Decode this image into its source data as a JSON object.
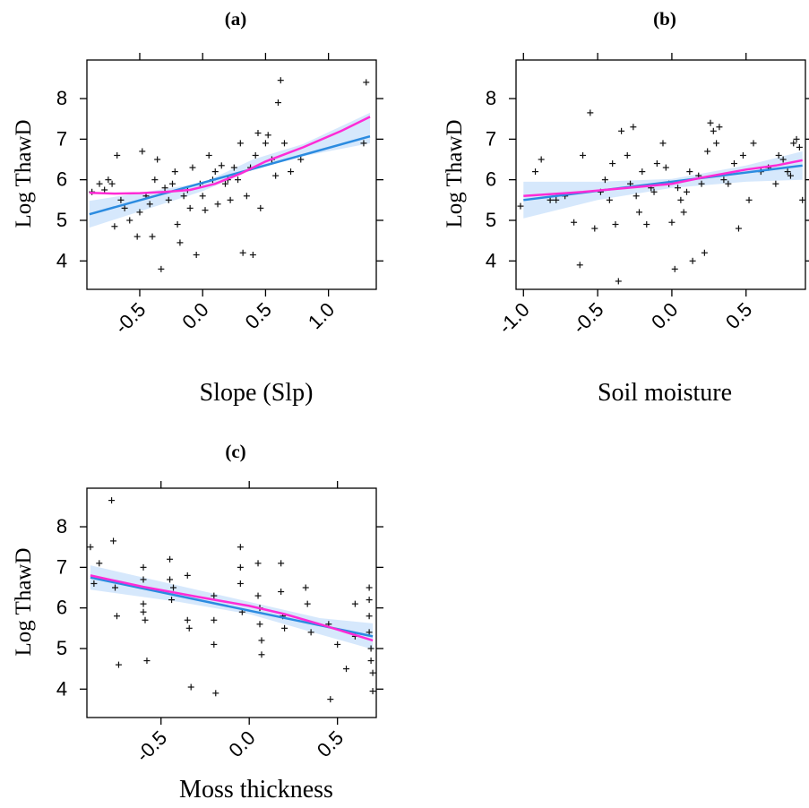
{
  "chart_data": [
    {
      "type": "scatter",
      "panel_label": "(a)",
      "xlabel": "Slope (Slp)",
      "ylabel": "Log ThawD",
      "xlim": [
        -0.92,
        1.38
      ],
      "ylim": [
        3.3,
        8.95
      ],
      "xticks": [
        -0.5,
        0.0,
        0.5,
        1.0
      ],
      "xtick_labels": [
        "-0.5",
        "0.0",
        "0.5",
        "1.0"
      ],
      "yticks": [
        4,
        5,
        6,
        7,
        8
      ],
      "ytick_labels": [
        "4",
        "5",
        "6",
        "7",
        "8"
      ],
      "grid": false,
      "points": [
        [
          -0.88,
          5.7
        ],
        [
          -0.82,
          5.9
        ],
        [
          -0.78,
          5.75
        ],
        [
          -0.75,
          6.0
        ],
        [
          -0.72,
          5.9
        ],
        [
          -0.7,
          4.85
        ],
        [
          -0.68,
          6.6
        ],
        [
          -0.65,
          5.5
        ],
        [
          -0.62,
          5.3
        ],
        [
          -0.58,
          5.0
        ],
        [
          -0.52,
          4.6
        ],
        [
          -0.5,
          5.2
        ],
        [
          -0.48,
          6.7
        ],
        [
          -0.45,
          5.6
        ],
        [
          -0.42,
          5.4
        ],
        [
          -0.4,
          4.6
        ],
        [
          -0.38,
          6.0
        ],
        [
          -0.36,
          6.5
        ],
        [
          -0.33,
          3.8
        ],
        [
          -0.3,
          5.8
        ],
        [
          -0.27,
          5.5
        ],
        [
          -0.24,
          5.9
        ],
        [
          -0.22,
          6.2
        ],
        [
          -0.2,
          4.9
        ],
        [
          -0.18,
          4.45
        ],
        [
          -0.15,
          5.6
        ],
        [
          -0.12,
          5.75
        ],
        [
          -0.1,
          5.3
        ],
        [
          -0.08,
          6.3
        ],
        [
          -0.05,
          4.15
        ],
        [
          -0.02,
          5.9
        ],
        [
          0.0,
          5.6
        ],
        [
          0.02,
          5.25
        ],
        [
          0.05,
          6.6
        ],
        [
          0.08,
          6.0
        ],
        [
          0.1,
          6.2
        ],
        [
          0.12,
          5.4
        ],
        [
          0.15,
          6.35
        ],
        [
          0.18,
          5.9
        ],
        [
          0.2,
          6.0
        ],
        [
          0.22,
          5.5
        ],
        [
          0.25,
          6.3
        ],
        [
          0.28,
          6.0
        ],
        [
          0.3,
          6.9
        ],
        [
          0.32,
          4.2
        ],
        [
          0.35,
          5.6
        ],
        [
          0.38,
          6.3
        ],
        [
          0.4,
          4.15
        ],
        [
          0.42,
          6.6
        ],
        [
          0.44,
          7.15
        ],
        [
          0.46,
          5.3
        ],
        [
          0.5,
          6.9
        ],
        [
          0.52,
          7.1
        ],
        [
          0.55,
          6.5
        ],
        [
          0.58,
          6.1
        ],
        [
          0.6,
          7.9
        ],
        [
          0.62,
          8.45
        ],
        [
          0.65,
          6.9
        ],
        [
          0.7,
          6.2
        ],
        [
          0.78,
          6.5
        ],
        [
          1.28,
          6.9
        ],
        [
          1.3,
          8.4
        ]
      ],
      "fit_line": [
        [
          -0.9,
          5.15
        ],
        [
          1.33,
          7.07
        ]
      ],
      "ci_band": {
        "x": [
          -0.9,
          0.0,
          0.4,
          0.8,
          1.33
        ],
        "lower": [
          4.82,
          5.72,
          6.25,
          6.58,
          6.9
        ],
        "upper": [
          5.48,
          5.92,
          6.5,
          6.88,
          7.65
        ]
      },
      "smooth_line": [
        [
          -0.9,
          5.68
        ],
        [
          -0.7,
          5.66
        ],
        [
          -0.5,
          5.67
        ],
        [
          -0.3,
          5.7
        ],
        [
          -0.1,
          5.75
        ],
        [
          0.1,
          5.9
        ],
        [
          0.3,
          6.15
        ],
        [
          0.5,
          6.45
        ],
        [
          0.8,
          6.8
        ],
        [
          1.1,
          7.2
        ],
        [
          1.33,
          7.55
        ]
      ]
    },
    {
      "type": "scatter",
      "panel_label": "(b)",
      "xlabel": "Soil moisture",
      "ylabel": "Log ThawD",
      "xlim": [
        -1.05,
        0.9
      ],
      "ylim": [
        3.3,
        8.95
      ],
      "xticks": [
        -1.0,
        -0.5,
        0.0,
        0.5
      ],
      "xtick_labels": [
        "-1.0",
        "-0.5",
        "0.0",
        "0.5"
      ],
      "yticks": [
        4,
        5,
        6,
        7,
        8
      ],
      "ytick_labels": [
        "4",
        "5",
        "6",
        "7",
        "8"
      ],
      "grid": false,
      "points": [
        [
          -1.02,
          5.35
        ],
        [
          -0.92,
          6.2
        ],
        [
          -0.88,
          6.5
        ],
        [
          -0.82,
          5.5
        ],
        [
          -0.78,
          5.5
        ],
        [
          -0.72,
          5.6
        ],
        [
          -0.66,
          4.95
        ],
        [
          -0.62,
          3.9
        ],
        [
          -0.6,
          6.6
        ],
        [
          -0.55,
          7.65
        ],
        [
          -0.52,
          4.8
        ],
        [
          -0.48,
          5.7
        ],
        [
          -0.45,
          6.0
        ],
        [
          -0.42,
          5.5
        ],
        [
          -0.4,
          6.4
        ],
        [
          -0.38,
          4.9
        ],
        [
          -0.36,
          3.5
        ],
        [
          -0.34,
          7.2
        ],
        [
          -0.3,
          6.6
        ],
        [
          -0.28,
          5.9
        ],
        [
          -0.26,
          7.3
        ],
        [
          -0.24,
          5.6
        ],
        [
          -0.22,
          5.2
        ],
        [
          -0.2,
          6.2
        ],
        [
          -0.17,
          4.9
        ],
        [
          -0.14,
          5.8
        ],
        [
          -0.12,
          5.7
        ],
        [
          -0.1,
          6.4
        ],
        [
          -0.06,
          6.9
        ],
        [
          -0.04,
          6.3
        ],
        [
          -0.02,
          5.9
        ],
        [
          0.0,
          4.95
        ],
        [
          0.02,
          3.8
        ],
        [
          0.04,
          5.8
        ],
        [
          0.06,
          5.5
        ],
        [
          0.08,
          5.2
        ],
        [
          0.1,
          5.7
        ],
        [
          0.12,
          6.2
        ],
        [
          0.14,
          4.0
        ],
        [
          0.18,
          6.1
        ],
        [
          0.2,
          5.9
        ],
        [
          0.22,
          4.2
        ],
        [
          0.24,
          6.7
        ],
        [
          0.26,
          7.4
        ],
        [
          0.28,
          7.2
        ],
        [
          0.3,
          6.9
        ],
        [
          0.32,
          7.3
        ],
        [
          0.35,
          6.0
        ],
        [
          0.38,
          5.9
        ],
        [
          0.42,
          6.4
        ],
        [
          0.45,
          4.8
        ],
        [
          0.48,
          6.6
        ],
        [
          0.52,
          5.5
        ],
        [
          0.55,
          6.9
        ],
        [
          0.6,
          6.2
        ],
        [
          0.65,
          6.3
        ],
        [
          0.7,
          5.9
        ],
        [
          0.72,
          6.6
        ],
        [
          0.75,
          6.5
        ],
        [
          0.78,
          6.2
        ],
        [
          0.8,
          6.1
        ],
        [
          0.82,
          6.9
        ],
        [
          0.84,
          7.0
        ],
        [
          0.86,
          6.8
        ],
        [
          0.88,
          5.5
        ]
      ],
      "fit_line": [
        [
          -1.0,
          5.5
        ],
        [
          0.88,
          6.35
        ]
      ],
      "ci_band": {
        "x": [
          -1.0,
          -0.5,
          0.0,
          0.5,
          0.88
        ],
        "lower": [
          5.05,
          5.5,
          5.8,
          5.95,
          6.0
        ],
        "upper": [
          5.95,
          5.95,
          6.02,
          6.35,
          6.7
        ]
      },
      "smooth_line": [
        [
          -1.0,
          5.6
        ],
        [
          -0.6,
          5.7
        ],
        [
          -0.3,
          5.8
        ],
        [
          0.0,
          5.9
        ],
        [
          0.2,
          6.05
        ],
        [
          0.5,
          6.25
        ],
        [
          0.7,
          6.35
        ],
        [
          0.88,
          6.48
        ]
      ]
    },
    {
      "type": "scatter",
      "panel_label": "(c)",
      "xlabel": "Moss thickness",
      "ylabel": "Log ThawD",
      "xlim": [
        -0.92,
        0.72
      ],
      "ylim": [
        3.3,
        8.95
      ],
      "xticks": [
        -0.5,
        0.0,
        0.5
      ],
      "xtick_labels": [
        "-0.5",
        "0.0",
        "0.5"
      ],
      "yticks": [
        4,
        5,
        6,
        7,
        8
      ],
      "ytick_labels": [
        "4",
        "5",
        "6",
        "7",
        "8"
      ],
      "grid": false,
      "points": [
        [
          -0.9,
          7.5
        ],
        [
          -0.88,
          6.6
        ],
        [
          -0.85,
          7.1
        ],
        [
          -0.78,
          8.65
        ],
        [
          -0.77,
          7.65
        ],
        [
          -0.76,
          6.5
        ],
        [
          -0.75,
          5.8
        ],
        [
          -0.74,
          4.6
        ],
        [
          -0.6,
          7.0
        ],
        [
          -0.6,
          6.7
        ],
        [
          -0.6,
          6.1
        ],
        [
          -0.6,
          5.9
        ],
        [
          -0.59,
          5.7
        ],
        [
          -0.58,
          4.7
        ],
        [
          -0.45,
          7.2
        ],
        [
          -0.45,
          6.7
        ],
        [
          -0.44,
          6.2
        ],
        [
          -0.43,
          6.5
        ],
        [
          -0.35,
          6.8
        ],
        [
          -0.35,
          5.7
        ],
        [
          -0.34,
          5.5
        ],
        [
          -0.33,
          4.05
        ],
        [
          -0.2,
          6.3
        ],
        [
          -0.2,
          5.7
        ],
        [
          -0.2,
          5.1
        ],
        [
          -0.19,
          3.9
        ],
        [
          -0.05,
          7.5
        ],
        [
          -0.05,
          7.0
        ],
        [
          -0.05,
          6.6
        ],
        [
          -0.04,
          5.9
        ],
        [
          0.05,
          7.1
        ],
        [
          0.05,
          6.3
        ],
        [
          0.06,
          6.0
        ],
        [
          0.06,
          5.6
        ],
        [
          0.07,
          5.2
        ],
        [
          0.07,
          4.85
        ],
        [
          0.18,
          7.1
        ],
        [
          0.18,
          6.4
        ],
        [
          0.19,
          5.8
        ],
        [
          0.2,
          5.5
        ],
        [
          0.32,
          6.5
        ],
        [
          0.33,
          6.1
        ],
        [
          0.35,
          5.4
        ],
        [
          0.45,
          5.6
        ],
        [
          0.46,
          3.75
        ],
        [
          0.5,
          5.1
        ],
        [
          0.55,
          4.5
        ],
        [
          0.6,
          6.1
        ],
        [
          0.6,
          5.3
        ],
        [
          0.68,
          6.5
        ],
        [
          0.68,
          6.2
        ],
        [
          0.68,
          5.8
        ],
        [
          0.68,
          5.4
        ],
        [
          0.69,
          5.0
        ],
        [
          0.69,
          4.7
        ],
        [
          0.7,
          4.4
        ],
        [
          0.7,
          3.95
        ]
      ],
      "fit_line": [
        [
          -0.9,
          6.75
        ],
        [
          0.7,
          5.3
        ]
      ],
      "ci_band": {
        "x": [
          -0.9,
          -0.4,
          0.0,
          0.4,
          0.7
        ],
        "lower": [
          6.45,
          6.15,
          5.85,
          5.35,
          4.98
        ],
        "upper": [
          7.05,
          6.55,
          6.15,
          5.75,
          5.62
        ]
      },
      "smooth_line": [
        [
          -0.9,
          6.8
        ],
        [
          -0.6,
          6.52
        ],
        [
          -0.3,
          6.28
        ],
        [
          0.0,
          6.05
        ],
        [
          0.2,
          5.85
        ],
        [
          0.4,
          5.6
        ],
        [
          0.7,
          5.2
        ]
      ]
    }
  ]
}
